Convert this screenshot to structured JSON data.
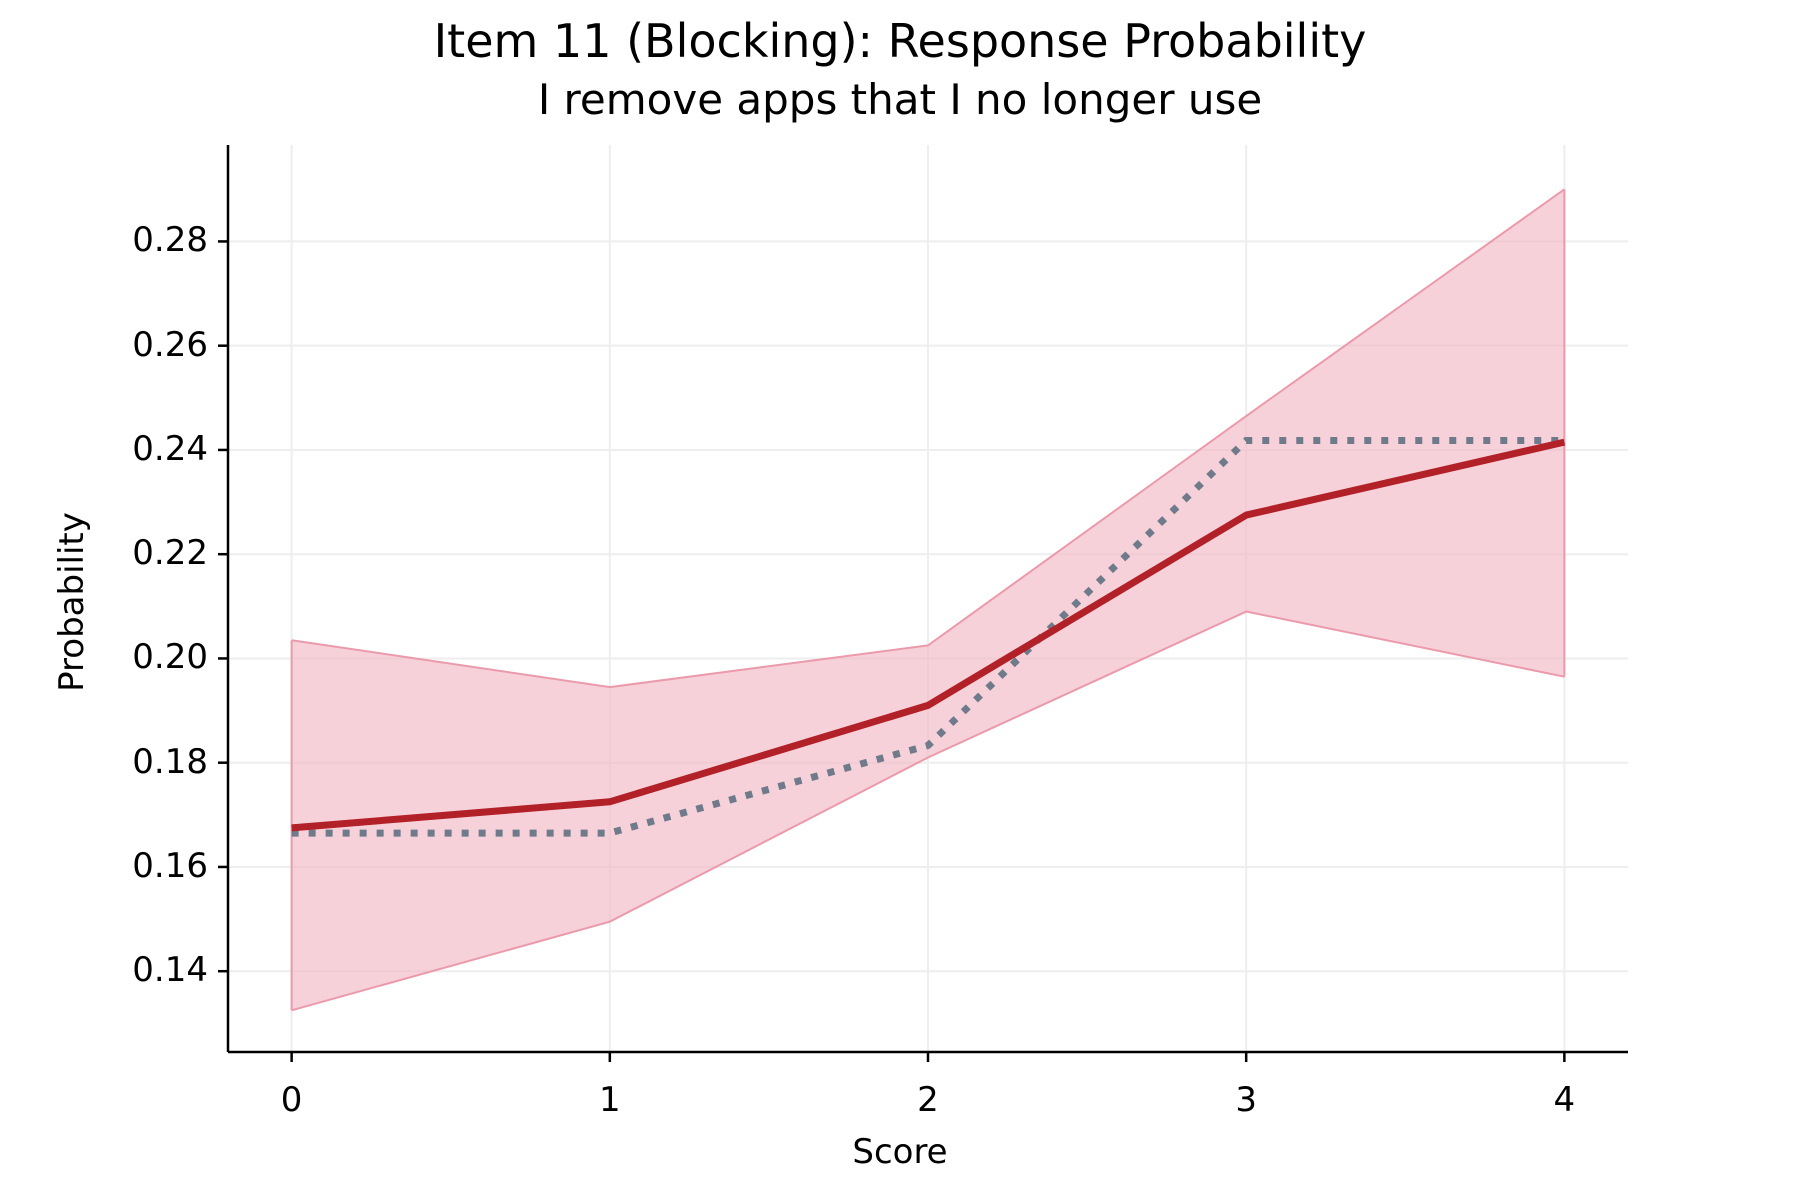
{
  "chart_data": {
    "type": "line",
    "title": "Item 11 (Blocking): Response Probability",
    "subtitle": "I remove apps that I no longer use",
    "xlabel": "Score",
    "ylabel": "Probability",
    "x": [
      0,
      1,
      2,
      3,
      4
    ],
    "x_ticks": [
      "0",
      "1",
      "2",
      "3",
      "4"
    ],
    "y_ticks": [
      "0.14",
      "0.16",
      "0.18",
      "0.20",
      "0.22",
      "0.24",
      "0.26",
      "0.28"
    ],
    "xlim": [
      -0.2,
      4.2
    ],
    "ylim": [
      0.1245,
      0.2985
    ],
    "grid": true,
    "series": [
      {
        "style": "solid",
        "color": "#b22028",
        "values": [
          0.1675,
          0.1725,
          0.191,
          0.2275,
          0.2415
        ]
      },
      {
        "style": "dotted",
        "color": "#6f7a8a",
        "values": [
          0.1665,
          0.1665,
          0.1833,
          0.2418,
          0.2418
        ]
      }
    ],
    "band": {
      "color": "#f2b5c1",
      "lower": [
        0.1325,
        0.1495,
        0.181,
        0.209,
        0.1965
      ],
      "upper": [
        0.2035,
        0.1945,
        0.2025,
        0.2465,
        0.29
      ]
    }
  }
}
